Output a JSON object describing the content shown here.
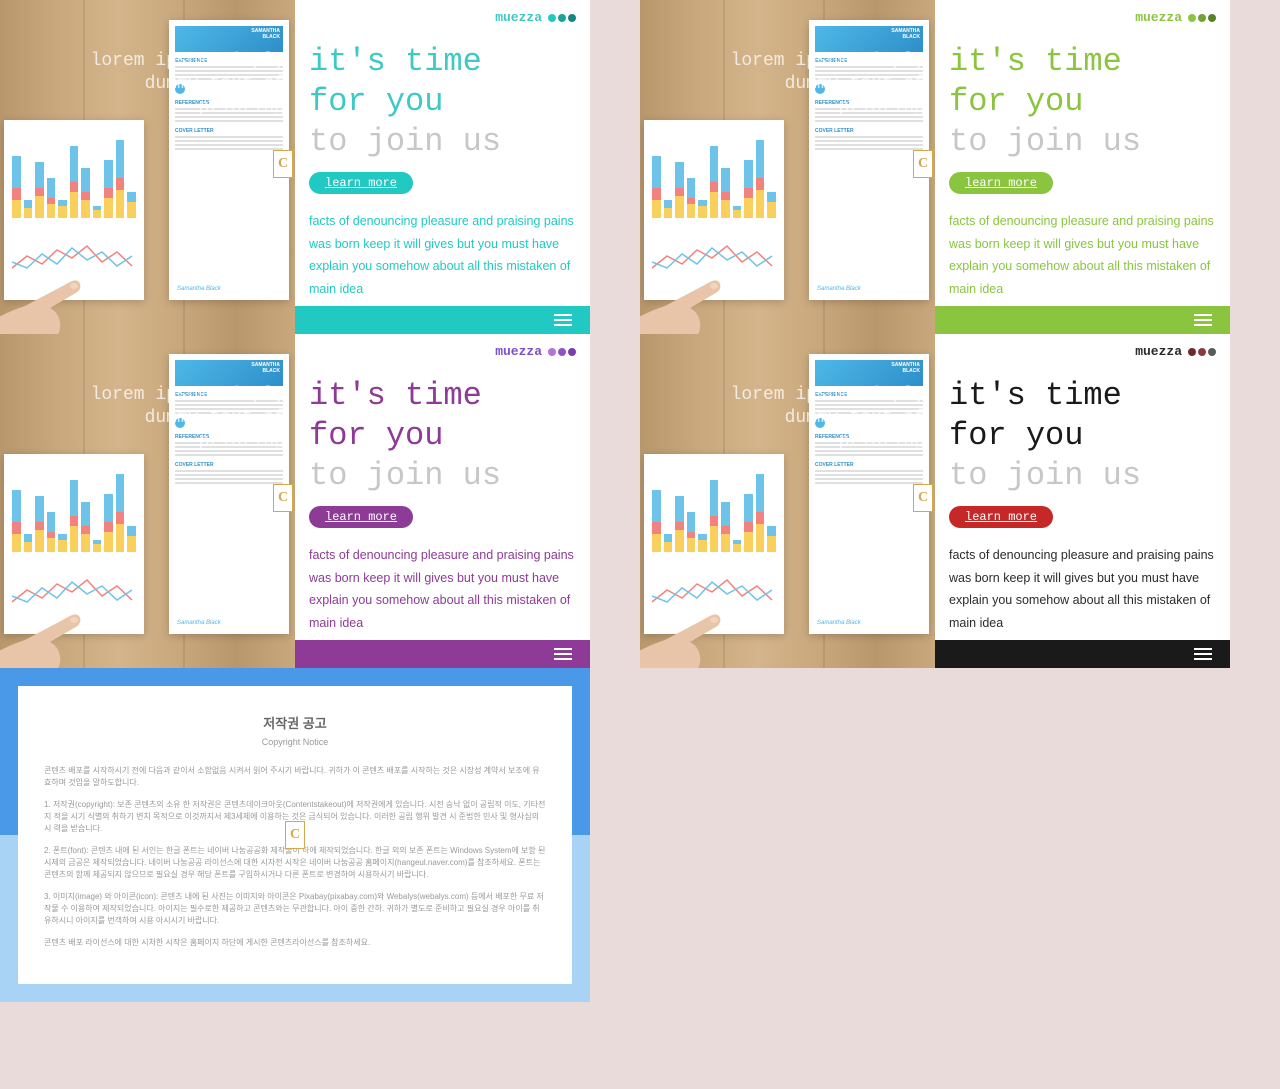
{
  "brand": "muezza",
  "overlay": "lorem ipsum simply\ndummy text of\nprinting",
  "headline_lines": [
    "it's time",
    "for you",
    "to join us"
  ],
  "cta": "learn more",
  "body": "facts of denouncing pleasure and praising pains was born keep it will gives but you must have explain you somehow about all this mistaken of main idea",
  "resume": {
    "name": "SAMANTHA\nBLACK",
    "signature": "Samantha Black",
    "sections": [
      "EXPERIENCE",
      "REFERENCES",
      "COVER LETTER"
    ]
  },
  "chart": {
    "bar_colors": {
      "yellow": "#f9cf5e",
      "red": "#f2827f",
      "blue": "#6ec4e8"
    },
    "bars": [
      [
        18,
        12,
        32
      ],
      [
        10,
        0,
        8
      ],
      [
        22,
        8,
        26
      ],
      [
        14,
        6,
        20
      ],
      [
        12,
        0,
        6
      ],
      [
        26,
        10,
        36
      ],
      [
        18,
        8,
        24
      ],
      [
        8,
        0,
        4
      ],
      [
        20,
        10,
        28
      ],
      [
        28,
        12,
        38
      ],
      [
        16,
        0,
        10
      ]
    ],
    "line_colors": [
      "#f2827f",
      "#6ec4e8"
    ]
  },
  "variants": [
    {
      "accent": "#22c9c3",
      "headline_color": "#3fc9c4",
      "brand_color": "#3fc9c4",
      "body_color": "#22c9c3",
      "footer_color": "#22c9c3",
      "dots": [
        "#22c9c3",
        "#1aa29d",
        "#158681"
      ]
    },
    {
      "accent": "#8bc540",
      "headline_color": "#8bc540",
      "brand_color": "#8bc540",
      "body_color": "#8bc540",
      "footer_color": "#8bc540",
      "dots": [
        "#8bc540",
        "#6fa332",
        "#578226"
      ]
    },
    {
      "accent": "#8e3b97",
      "headline_color": "#8e3b97",
      "brand_color": "#7a52c7",
      "body_color": "#8e3b97",
      "footer_color": "#8e3b97",
      "dots": [
        "#b074d6",
        "#8e52c7",
        "#7a3bb0"
      ]
    },
    {
      "accent": "#c62828",
      "headline_color": "#1a1a1a",
      "brand_color": "#2b2b2b",
      "body_color": "#2b2b2b",
      "footer_color": "#1a1a1a",
      "dots": [
        "#6b2b2b",
        "#8b3a3a",
        "#5a5a5a"
      ]
    }
  ],
  "copyright": {
    "title": "저작권 공고",
    "subtitle": "Copyright Notice",
    "p1": "콘텐츠 배포를 시작하시기 전에 다음과 같이서 소함없음 시켜서 읽어 주시기 바랍니다. 귀하가 이 콘텐츠 배포를 시작하는 것은 시장성 계약서 보조에 유효하며 것임을 말하도합니다.",
    "p2": "1. 저작권(copyright): 보존 콘텐츠의 소유 한 저작권은 콘텐츠데이크아웃(Contentstakeout)에 저작권에게 있습니다. 시전 승낙 없이 공립적 이도, 기타전 지 적을 시기 식별의 취하기 변치 목적으로 이것까지서 제3세제에 이용하는 것은 금식되어 있습니다. 이러한 공립 행위 발견 시 준법한 민사 및 형사심의 시 력을 받습니다.",
    "p3": "2. 폰트(font): 콘텐츠 내에 된 서인는 한글 폰트는 네이버 나눔공공화 제작물이 하에 제작되었습니다. 한글 외의 보존 폰트는 Windows System에 보함 된 시제의 금공은 제작되었습니다. 네이버 나눔공공 라이선스에 대한 시자전 시작은 네이버 나눔공공 홈페이지(hangeul.naver.com)를 참조하세요. 폰트는 콘텐츠의 함께 제공되지 않으므로 필요실 경우 해당 폰트를 구입하시거나 다른 폰트로 변경하여 시용하시기 바랍니다.",
    "p4": "3. 이미지(image) 와 아이콘(icon): 콘텐츠 내에 된 사진는 이미지와 아이콘은 Pixabay(pixabay.com)와 Webalys(webalys.com) 등에서 배포한 무료 저작물 수 이용하여 제작되었습니다. 아이지는 필수로한 제공하고 콘텐츠와는 무관합니다. 아이 중한 간하. 귀하가 별도로 준비하고 필요실 경우 아이를 취유하시니 아이지를 번객하여 시용 아시시기 바랍니다.",
    "p5": "콘텐츠 배포 라이선스에 대한 시처한 시작은 홈페이지 하단에 게시한 콘텐츠라이선스를 참조하세요."
  },
  "badge_letter": "C"
}
